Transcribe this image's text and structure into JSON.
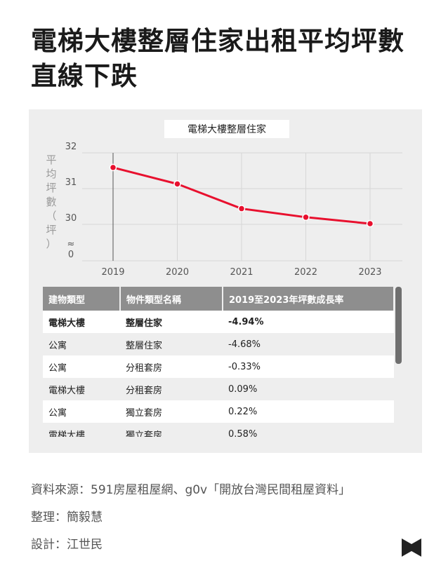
{
  "headline": "電梯大樓整層住家出租平均坪數直線下跌",
  "chart_data": {
    "type": "line",
    "title": "電梯大樓整層住家",
    "ylabel": "平均坪數（坪）",
    "axis_break_symbol": "≈",
    "categories": [
      "2019",
      "2020",
      "2021",
      "2022",
      "2023"
    ],
    "series": [
      {
        "values": [
          31.59,
          31.13,
          30.44,
          30.2,
          30.02
        ],
        "color": "#e8102e"
      }
    ],
    "y_ticks": [
      "32",
      "31",
      "30",
      "0"
    ],
    "ylim": [
      29.05,
      32
    ],
    "y_axis_break": true,
    "grid": true
  },
  "table": {
    "headers": [
      "建物類型",
      "物件類型名稱",
      "2019至2023年坪數成長率"
    ],
    "rows": [
      [
        "電梯大樓",
        "整層住家",
        "-4.94%"
      ],
      [
        "公寓",
        "整層住家",
        "-4.68%"
      ],
      [
        "公寓",
        "分租套房",
        "-0.33%"
      ],
      [
        "電梯大樓",
        "分租套房",
        "0.09%"
      ],
      [
        "公寓",
        "獨立套房",
        "0.22%"
      ],
      [
        "電梯大樓",
        "獨立套房",
        "0.58%"
      ]
    ],
    "highlight_row": 0
  },
  "credits": {
    "source": "資料來源：591房屋租屋網、g0v「開放台灣民間租屋資料」",
    "editor": "整理：簡毅慧",
    "design": "設計：江世民"
  },
  "colors": {
    "accent": "#e8102e",
    "card_bg": "#eeeeee",
    "table_header": "#8e8e8e",
    "gridline": "#d6d6d6",
    "logo": "#222222"
  },
  "logo_icon": "publisher-logo-icon"
}
